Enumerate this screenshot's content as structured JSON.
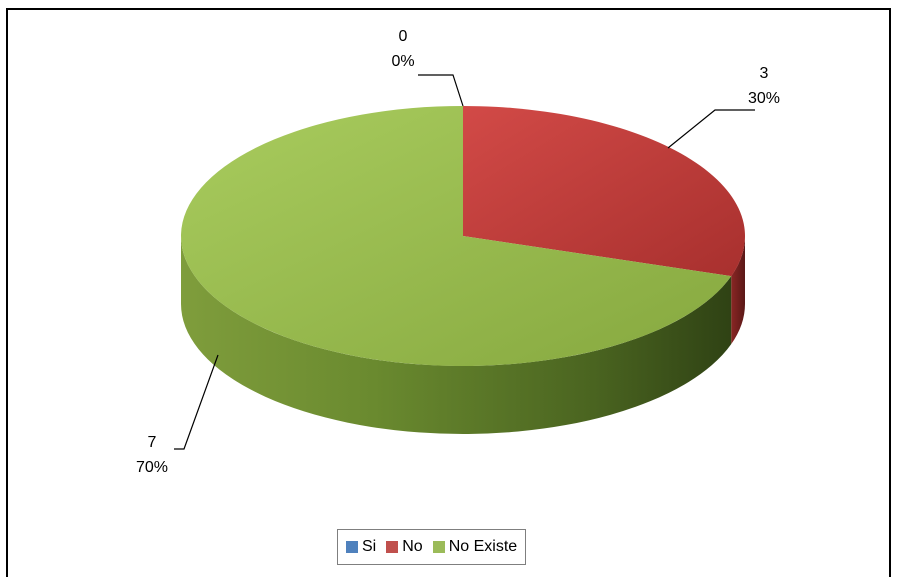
{
  "chart_data": {
    "type": "pie",
    "three_d": true,
    "categories": [
      "Si",
      "No",
      "No Existe"
    ],
    "values": [
      0,
      3,
      7
    ],
    "percentages": [
      "0%",
      "30%",
      "70%"
    ],
    "colors": [
      "#4f81bd",
      "#c0504d",
      "#9bbb59"
    ],
    "data_labels": [
      {
        "value": "0",
        "percent": "0%"
      },
      {
        "value": "3",
        "percent": "30%"
      },
      {
        "value": "7",
        "percent": "70%"
      }
    ],
    "legend": {
      "position": "bottom",
      "entries": [
        "Si",
        "No",
        "No Existe"
      ]
    }
  }
}
